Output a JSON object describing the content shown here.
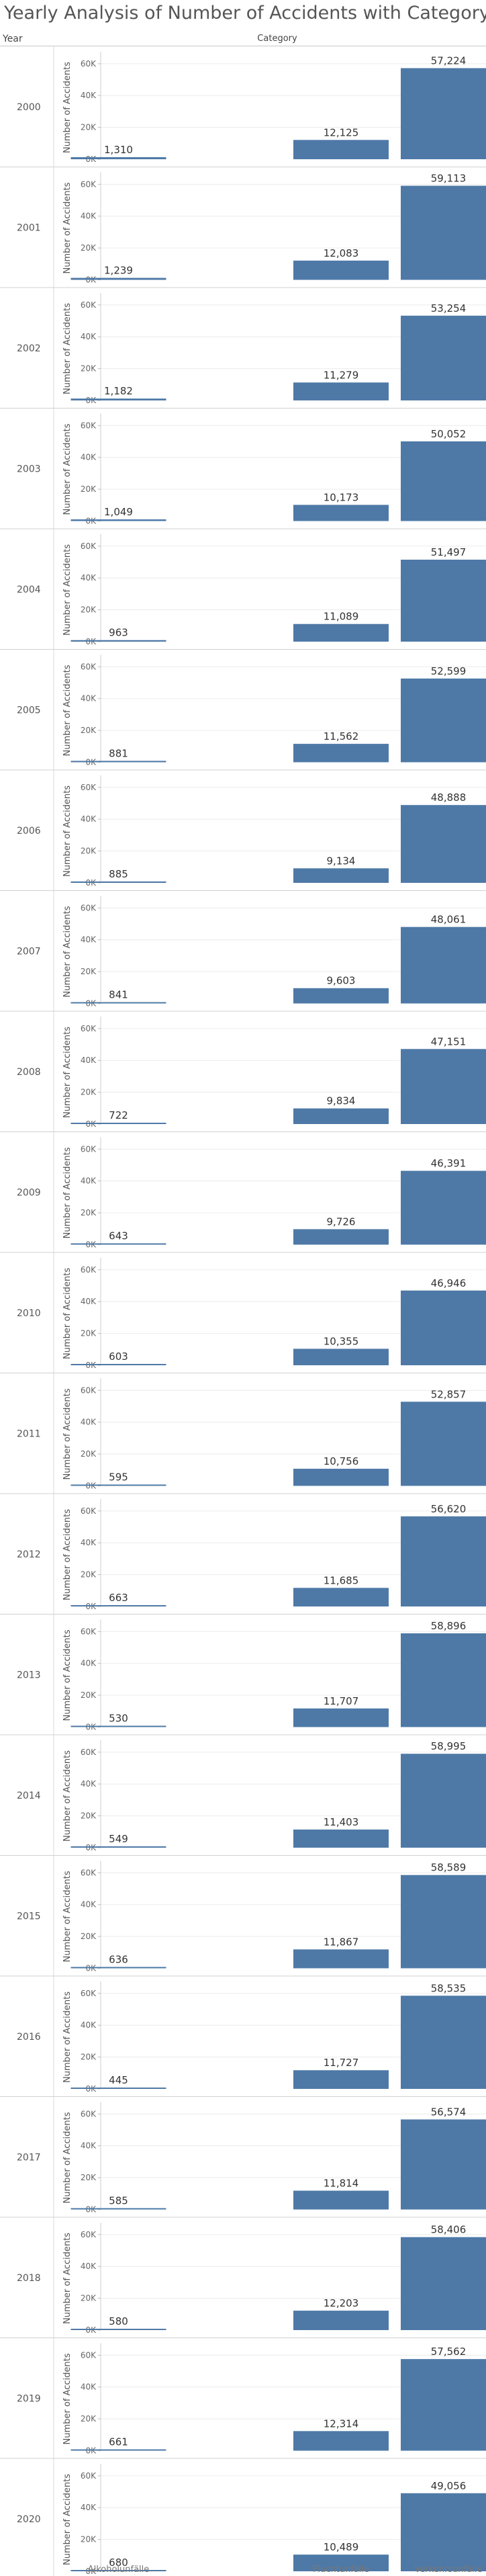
{
  "title": "Yearly Analysis of Number of Accidents with Category",
  "row_header": "Year",
  "column_header": "Category",
  "bar_color": "#4e79a7",
  "chart_data": {
    "type": "bar",
    "layout": "small-multiples",
    "title": "Yearly Analysis of Number of Accidents with Category",
    "categories": [
      "Alkoholunfälle",
      "Fluchtunfälle",
      "Verkehrsunfälle"
    ],
    "ylabel": "Number of Accidents",
    "ylim": [
      0,
      65000
    ],
    "yticks": [
      0,
      20000,
      40000,
      60000
    ],
    "ytick_labels": [
      "0K",
      "20K",
      "40K",
      "60K"
    ],
    "grid": true,
    "legend": "none",
    "panels": [
      {
        "year": "2000",
        "values": [
          1310,
          12125,
          57224
        ],
        "labels": [
          "1,310",
          "12,125",
          "57,224"
        ]
      },
      {
        "year": "2001",
        "values": [
          1239,
          12083,
          59113
        ],
        "labels": [
          "1,239",
          "12,083",
          "59,113"
        ]
      },
      {
        "year": "2002",
        "values": [
          1182,
          11279,
          53254
        ],
        "labels": [
          "1,182",
          "11,279",
          "53,254"
        ]
      },
      {
        "year": "2003",
        "values": [
          1049,
          10173,
          50052
        ],
        "labels": [
          "1,049",
          "10,173",
          "50,052"
        ]
      },
      {
        "year": "2004",
        "values": [
          963,
          11089,
          51497
        ],
        "labels": [
          "963",
          "11,089",
          "51,497"
        ]
      },
      {
        "year": "2005",
        "values": [
          881,
          11562,
          52599
        ],
        "labels": [
          "881",
          "11,562",
          "52,599"
        ]
      },
      {
        "year": "2006",
        "values": [
          885,
          9134,
          48888
        ],
        "labels": [
          "885",
          "9,134",
          "48,888"
        ]
      },
      {
        "year": "2007",
        "values": [
          841,
          9603,
          48061
        ],
        "labels": [
          "841",
          "9,603",
          "48,061"
        ]
      },
      {
        "year": "2008",
        "values": [
          722,
          9834,
          47151
        ],
        "labels": [
          "722",
          "9,834",
          "47,151"
        ]
      },
      {
        "year": "2009",
        "values": [
          643,
          9726,
          46391
        ],
        "labels": [
          "643",
          "9,726",
          "46,391"
        ]
      },
      {
        "year": "2010",
        "values": [
          603,
          10355,
          46946
        ],
        "labels": [
          "603",
          "10,355",
          "46,946"
        ]
      },
      {
        "year": "2011",
        "values": [
          595,
          10756,
          52857
        ],
        "labels": [
          "595",
          "10,756",
          "52,857"
        ]
      },
      {
        "year": "2012",
        "values": [
          663,
          11685,
          56620
        ],
        "labels": [
          "663",
          "11,685",
          "56,620"
        ]
      },
      {
        "year": "2013",
        "values": [
          530,
          11707,
          58896
        ],
        "labels": [
          "530",
          "11,707",
          "58,896"
        ]
      },
      {
        "year": "2014",
        "values": [
          549,
          11403,
          58995
        ],
        "labels": [
          "549",
          "11,403",
          "58,995"
        ]
      },
      {
        "year": "2015",
        "values": [
          636,
          11867,
          58589
        ],
        "labels": [
          "636",
          "11,867",
          "58,589"
        ]
      },
      {
        "year": "2016",
        "values": [
          445,
          11727,
          58535
        ],
        "labels": [
          "445",
          "11,727",
          "58,535"
        ]
      },
      {
        "year": "2017",
        "values": [
          585,
          11814,
          56574
        ],
        "labels": [
          "585",
          "11,814",
          "56,574"
        ]
      },
      {
        "year": "2018",
        "values": [
          580,
          12203,
          58406
        ],
        "labels": [
          "580",
          "12,203",
          "58,406"
        ]
      },
      {
        "year": "2019",
        "values": [
          661,
          12314,
          57562
        ],
        "labels": [
          "661",
          "12,314",
          "57,562"
        ]
      },
      {
        "year": "2020",
        "values": [
          680,
          10489,
          49056
        ],
        "labels": [
          "680",
          "10,489",
          "49,056"
        ]
      }
    ]
  }
}
